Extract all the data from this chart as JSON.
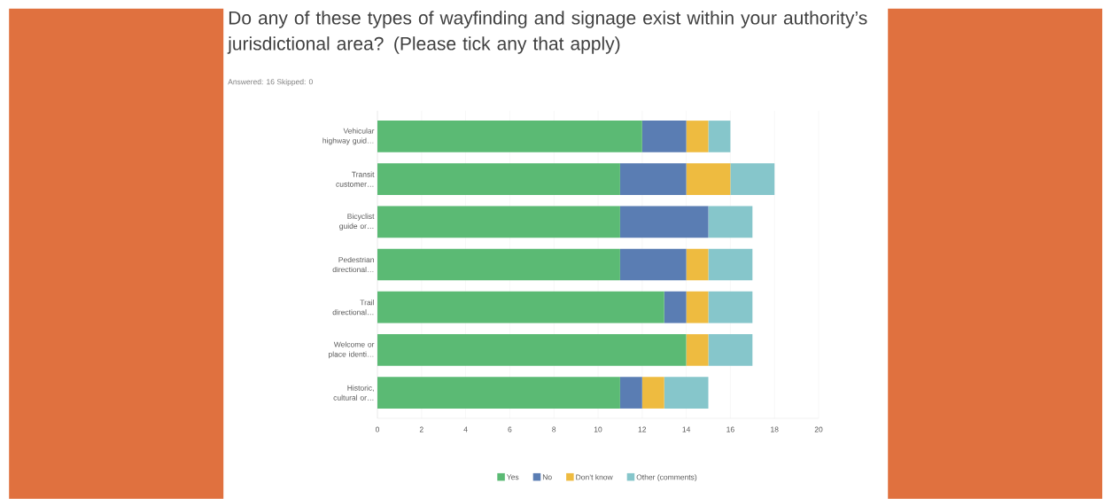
{
  "chart_data": {
    "type": "bar",
    "orientation": "horizontal",
    "stacked": true,
    "title": "Do any of these types of wayfinding and signage exist within your authority’s jurisdictional area? (Please tick any that apply)",
    "subtitle": "Answered: 16    Skipped: 0",
    "categories": [
      "Vehicular highway guid…",
      "Transit customer…",
      "Bicyclist guide or…",
      "Pedestrian directional…",
      "Trail directional…",
      "Welcome or place identi…",
      "Historic, cultural or…"
    ],
    "series": [
      {
        "name": "Yes",
        "color": "#5bba74",
        "values": [
          12,
          11,
          11,
          11,
          13,
          14,
          11
        ]
      },
      {
        "name": "No",
        "color": "#5a7db3",
        "values": [
          2,
          3,
          4,
          3,
          1,
          0,
          1
        ]
      },
      {
        "name": "Don’t know",
        "color": "#eebb40",
        "values": [
          1,
          2,
          0,
          1,
          1,
          1,
          1
        ]
      },
      {
        "name": "Other (comments)",
        "color": "#86c6cb",
        "values": [
          1,
          2,
          2,
          2,
          2,
          2,
          2
        ]
      }
    ],
    "xlim": [
      0,
      20
    ],
    "xticks": [
      0,
      2,
      4,
      6,
      8,
      10,
      12,
      14,
      16,
      18,
      20
    ],
    "grid": "x",
    "legend": "bottom"
  }
}
